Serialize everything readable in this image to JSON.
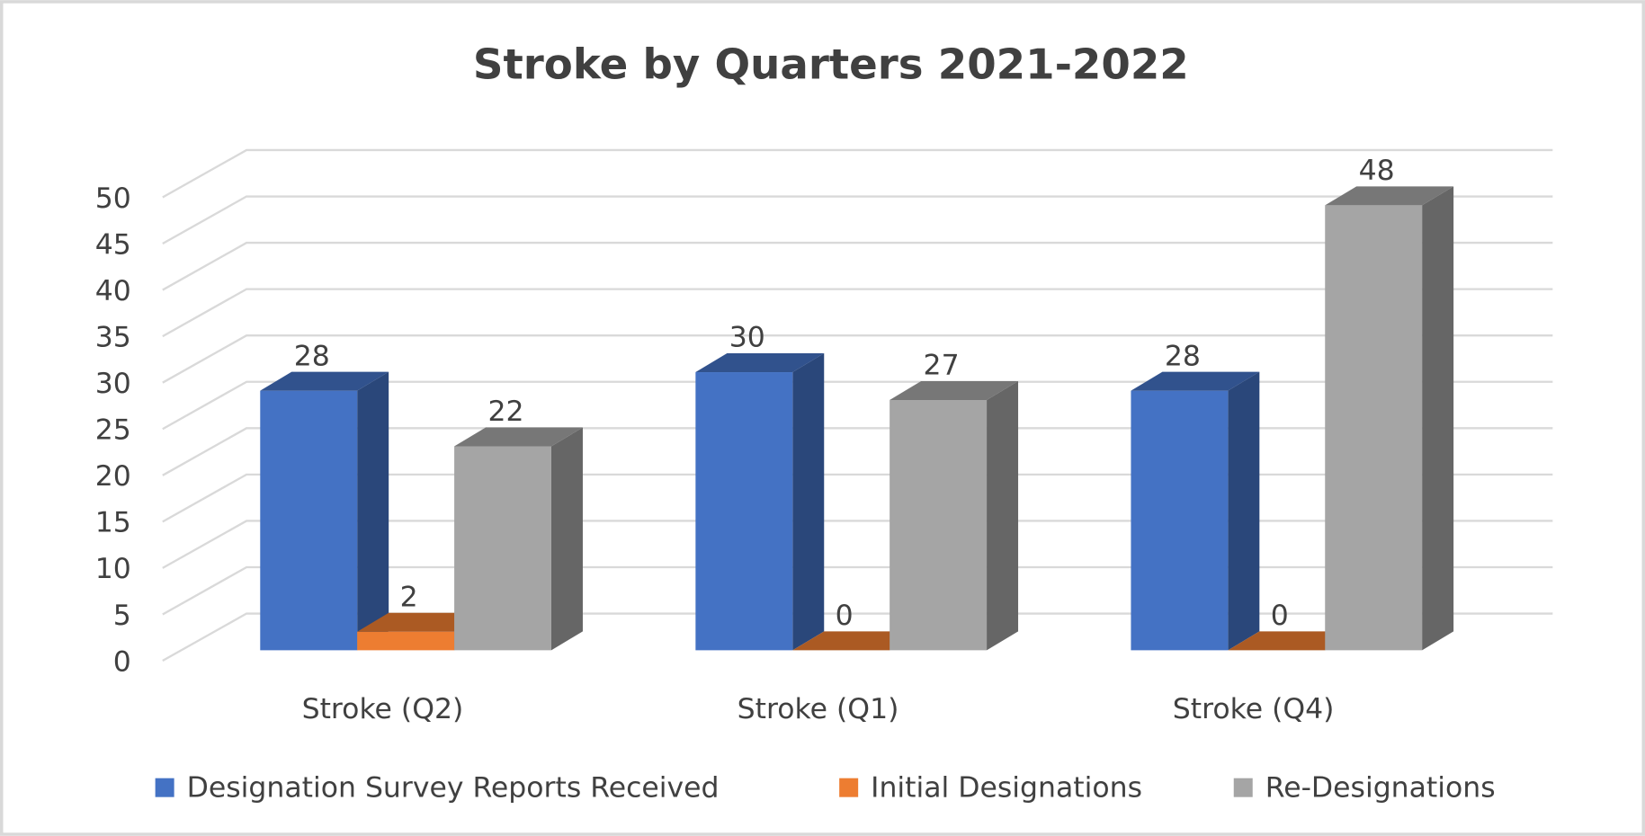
{
  "chart_data": {
    "type": "bar3d",
    "title": "Stroke by Quarters 2021-2022",
    "categories": [
      "Stroke (Q2)",
      "Stroke (Q1)",
      "Stroke (Q4)"
    ],
    "series": [
      {
        "name": "Designation Survey Reports Received",
        "color": "#4472c4",
        "values": [
          28,
          30,
          28
        ]
      },
      {
        "name": "Initial Designations",
        "color": "#ed7d31",
        "values": [
          2,
          0,
          0
        ]
      },
      {
        "name": "Re-Designations",
        "color": "#a5a5a5",
        "values": [
          22,
          27,
          48
        ]
      }
    ],
    "ylim": [
      0,
      50
    ],
    "yticks": [
      0,
      5,
      10,
      15,
      20,
      25,
      30,
      35,
      40,
      45,
      50
    ],
    "grid": true,
    "legend": "bottom"
  }
}
